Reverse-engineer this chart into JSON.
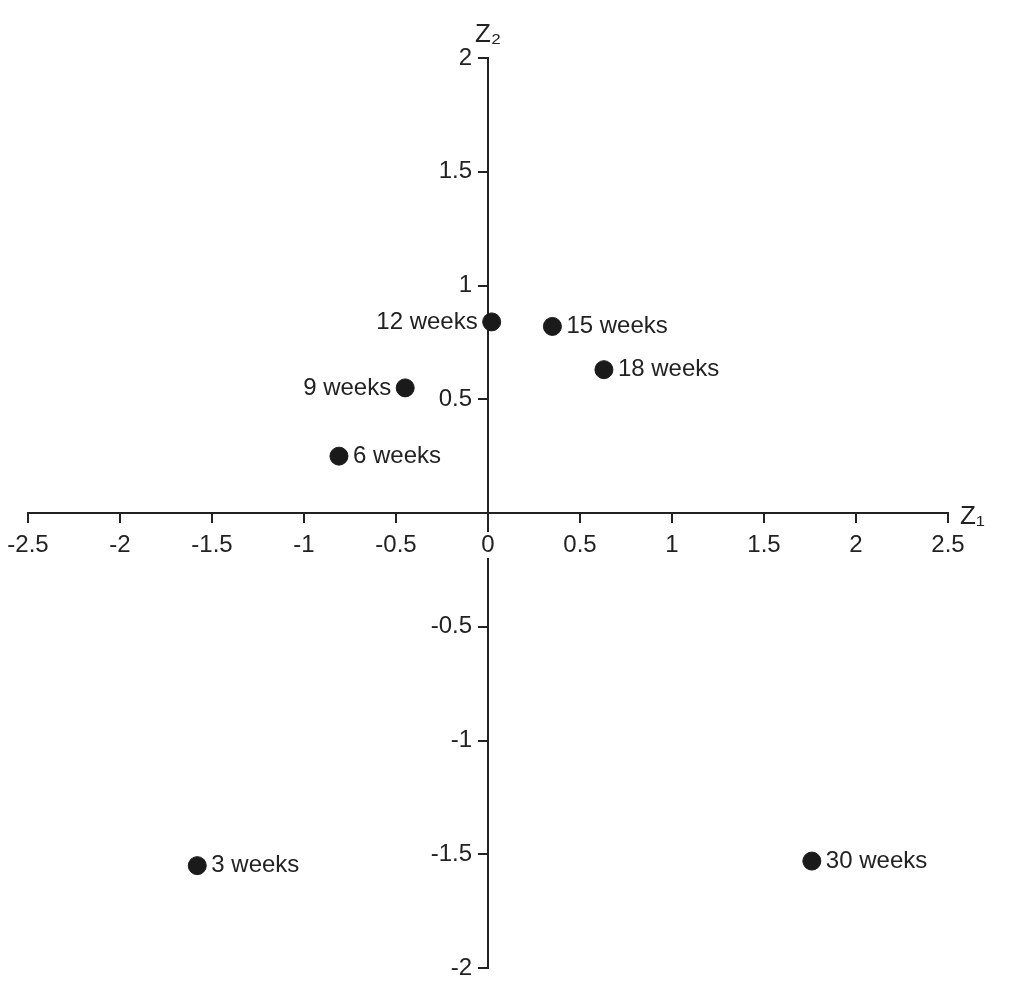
{
  "chart_data": {
    "type": "scatter",
    "xlabel": "Z₁",
    "ylabel": "Z₂",
    "marker": "circle",
    "series": [
      {
        "color": "#1a1a1a",
        "x": [
          0.02,
          0.35,
          0.63,
          -0.45,
          -0.81,
          -1.58,
          1.76
        ],
        "values": [
          0.84,
          0.82,
          0.63,
          0.55,
          0.25,
          -1.55,
          -1.53
        ]
      }
    ],
    "xlim": [
      -2.5,
      2.5
    ],
    "ylim": [
      -2,
      2
    ],
    "xticks": [
      -2.5,
      -2,
      -1.5,
      -1,
      -0.5,
      0,
      0.5,
      1,
      1.5,
      2,
      2.5
    ],
    "yticks": [
      -2,
      -1.5,
      -1,
      -0.5,
      0.5,
      1,
      1.5,
      2
    ],
    "annotations": [
      {
        "text": "12 weeks",
        "x": 0.02,
        "y": 0.84
      },
      {
        "text": "15 weeks",
        "x": 0.35,
        "y": 0.82
      },
      {
        "text": "18 weeks",
        "x": 0.63,
        "y": 0.63
      },
      {
        "text": "9 weeks",
        "x": -0.45,
        "y": 0.55
      },
      {
        "text": "6 weeks",
        "x": -0.81,
        "y": 0.25
      },
      {
        "text": "3 weeks",
        "x": -1.58,
        "y": -1.55
      },
      {
        "text": "30 weeks",
        "x": 1.76,
        "y": -1.53
      }
    ]
  }
}
